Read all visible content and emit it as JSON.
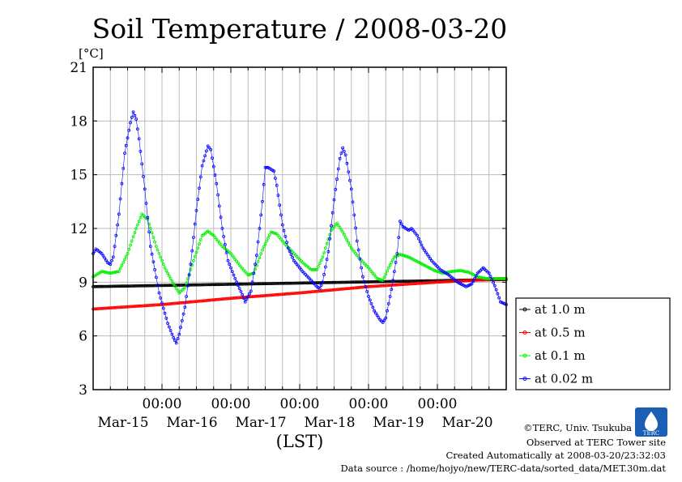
{
  "chart_data": {
    "type": "scatter",
    "title": "Soil Temperature / 2008-03-20",
    "y_unit": "[°C]",
    "xlabel": "(LST)",
    "ylim": [
      3,
      21
    ],
    "y_ticks": [
      3,
      6,
      9,
      12,
      15,
      18,
      21
    ],
    "x_range_hours": [
      0,
      144
    ],
    "x_ticks": [
      {
        "time": "00:00",
        "date": "Mar-15",
        "hour": 24
      },
      {
        "time": "00:00",
        "date": "Mar-16",
        "hour": 48
      },
      {
        "time": "00:00",
        "date": "Mar-17",
        "hour": 72
      },
      {
        "time": "00:00",
        "date": "Mar-18",
        "hour": 96
      },
      {
        "time": "00:00",
        "date": "Mar-19",
        "hour": 120
      }
    ],
    "x_extra_dates": [
      {
        "date": "Mar-20",
        "hour": 144
      }
    ],
    "legend_position": "right-outside",
    "series": [
      {
        "name": "at 1.0 m",
        "color": "#000000",
        "points": [
          [
            0,
            8.75
          ],
          [
            144,
            9.15
          ]
        ]
      },
      {
        "name": "at 0.5 m",
        "color": "#ff0000",
        "points": [
          [
            0,
            7.5
          ],
          [
            24,
            7.75
          ],
          [
            48,
            8.1
          ],
          [
            72,
            8.4
          ],
          [
            96,
            8.75
          ],
          [
            120,
            9.0
          ],
          [
            144,
            9.2
          ]
        ]
      },
      {
        "name": "at 0.1 m",
        "color": "#00ee00",
        "points": [
          [
            0,
            9.3
          ],
          [
            3,
            9.6
          ],
          [
            6,
            9.5
          ],
          [
            9,
            9.6
          ],
          [
            12,
            10.6
          ],
          [
            15,
            12.0
          ],
          [
            17,
            12.8
          ],
          [
            19,
            12.5
          ],
          [
            22,
            11.0
          ],
          [
            25,
            9.8
          ],
          [
            28,
            8.9
          ],
          [
            30,
            8.4
          ],
          [
            32,
            8.7
          ],
          [
            35,
            10.2
          ],
          [
            38,
            11.6
          ],
          [
            40,
            11.85
          ],
          [
            42,
            11.6
          ],
          [
            45,
            11.0
          ],
          [
            48,
            10.6
          ],
          [
            51,
            9.95
          ],
          [
            54,
            9.4
          ],
          [
            56,
            9.5
          ],
          [
            59,
            10.8
          ],
          [
            62,
            11.8
          ],
          [
            64,
            11.7
          ],
          [
            67,
            11.1
          ],
          [
            70,
            10.6
          ],
          [
            73,
            10.1
          ],
          [
            76,
            9.7
          ],
          [
            78,
            9.7
          ],
          [
            80,
            10.4
          ],
          [
            83,
            11.9
          ],
          [
            85,
            12.3
          ],
          [
            87,
            11.8
          ],
          [
            90,
            10.9
          ],
          [
            93,
            10.3
          ],
          [
            96,
            9.8
          ],
          [
            99,
            9.2
          ],
          [
            101,
            9.1
          ],
          [
            103,
            9.8
          ],
          [
            105,
            10.4
          ],
          [
            107,
            10.55
          ],
          [
            110,
            10.4
          ],
          [
            113,
            10.15
          ],
          [
            116,
            9.9
          ],
          [
            119,
            9.65
          ],
          [
            122,
            9.5
          ],
          [
            125,
            9.6
          ],
          [
            128,
            9.65
          ],
          [
            131,
            9.55
          ],
          [
            134,
            9.3
          ],
          [
            137,
            9.2
          ],
          [
            141,
            9.2
          ],
          [
            144,
            9.2
          ]
        ]
      },
      {
        "name": "at 0.02 m",
        "color": "#0000ff",
        "points": [
          [
            0,
            10.6
          ],
          [
            1,
            10.85
          ],
          [
            3,
            10.6
          ],
          [
            5,
            10.1
          ],
          [
            6,
            10.0
          ],
          [
            7,
            10.4
          ],
          [
            9,
            12.8
          ],
          [
            11,
            16.2
          ],
          [
            13,
            17.9
          ],
          [
            14,
            18.5
          ],
          [
            15,
            18.1
          ],
          [
            16,
            17.0
          ],
          [
            18,
            14.2
          ],
          [
            20,
            11.0
          ],
          [
            23,
            8.4
          ],
          [
            26,
            6.7
          ],
          [
            28,
            5.9
          ],
          [
            29,
            5.6
          ],
          [
            30,
            6.1
          ],
          [
            32,
            7.6
          ],
          [
            34,
            10.0
          ],
          [
            36,
            13.0
          ],
          [
            38,
            15.5
          ],
          [
            40,
            16.6
          ],
          [
            41,
            16.4
          ],
          [
            43,
            14.5
          ],
          [
            45,
            12.0
          ],
          [
            47,
            10.2
          ],
          [
            50,
            9.0
          ],
          [
            52,
            8.3
          ],
          [
            53,
            7.9
          ],
          [
            55,
            8.5
          ],
          [
            57,
            10.5
          ],
          [
            59,
            13.5
          ],
          [
            60,
            15.4
          ],
          [
            61,
            15.4
          ],
          [
            63,
            15.2
          ],
          [
            64,
            14.4
          ],
          [
            66,
            12.2
          ],
          [
            68,
            10.9
          ],
          [
            70,
            10.2
          ],
          [
            73,
            9.6
          ],
          [
            76,
            9.1
          ],
          [
            78,
            8.75
          ],
          [
            79,
            8.65
          ],
          [
            80,
            9.0
          ],
          [
            82,
            10.7
          ],
          [
            84,
            13.6
          ],
          [
            86,
            15.9
          ],
          [
            87,
            16.5
          ],
          [
            88,
            16.1
          ],
          [
            90,
            14.2
          ],
          [
            92,
            11.3
          ],
          [
            94,
            9.3
          ],
          [
            96,
            8.2
          ],
          [
            98,
            7.4
          ],
          [
            100,
            6.9
          ],
          [
            101,
            6.75
          ],
          [
            102,
            7.0
          ],
          [
            104,
            8.6
          ],
          [
            106,
            10.6
          ],
          [
            107,
            12.4
          ],
          [
            108,
            12.1
          ],
          [
            110,
            11.9
          ],
          [
            111,
            12.0
          ],
          [
            113,
            11.6
          ],
          [
            115,
            10.9
          ],
          [
            118,
            10.2
          ],
          [
            121,
            9.7
          ],
          [
            124,
            9.4
          ],
          [
            127,
            9.0
          ],
          [
            130,
            8.75
          ],
          [
            132,
            8.9
          ],
          [
            134,
            9.5
          ],
          [
            136,
            9.8
          ],
          [
            138,
            9.5
          ],
          [
            140,
            8.8
          ],
          [
            142,
            7.9
          ],
          [
            144,
            7.75
          ]
        ]
      }
    ]
  },
  "credits": {
    "copyright": "©TERC, Univ. Tsukuba",
    "observed": "Observed at TERC Tower site",
    "created": "Created Automatically at 2008-03-20/23:32:03",
    "source": "Data source : /home/hojyo/new/TERC-data/sorted_data/MET.30m.dat",
    "logo_text": "TERC"
  }
}
